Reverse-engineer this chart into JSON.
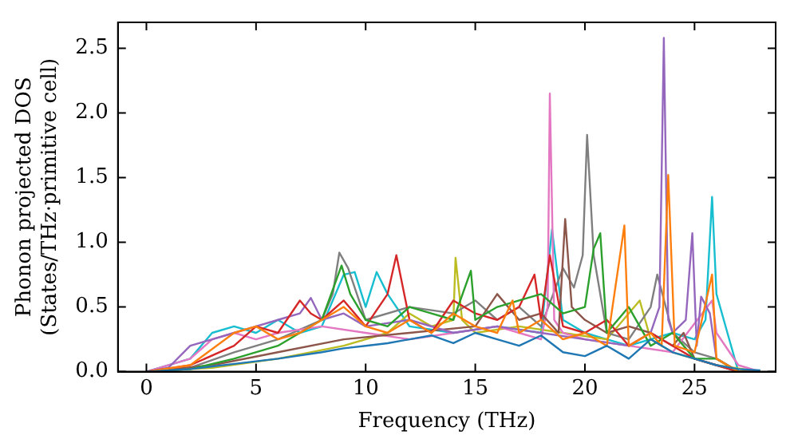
{
  "chart_data": {
    "type": "line",
    "xlabel": "Frequency (THz)",
    "ylabel": "Phonon projected DOS\n(States/THz·primitive cell)",
    "xlim": [
      -1.3,
      28.7
    ],
    "ylim": [
      0,
      2.7
    ],
    "xticks": [
      0,
      5,
      10,
      15,
      20,
      25
    ],
    "yticks": [
      {
        "value": 0,
        "label": "0.0"
      },
      0.5,
      {
        "value": 1,
        "label": "1.0"
      },
      1.5,
      {
        "value": 2,
        "label": "2.0"
      },
      2.5
    ],
    "grid": false,
    "legend": false,
    "marker": "none",
    "line_style": "solid",
    "series": [
      {
        "color": "#1f77b4",
        "x": [
          0,
          2,
          4,
          6,
          8,
          9,
          10,
          11,
          12,
          13,
          14,
          15,
          16,
          17,
          18,
          19,
          20,
          21,
          22,
          23,
          24,
          25,
          26,
          27,
          28
        ],
        "values": [
          0,
          0.02,
          0.06,
          0.1,
          0.15,
          0.18,
          0.2,
          0.22,
          0.25,
          0.28,
          0.22,
          0.3,
          0.25,
          0.2,
          0.28,
          0.15,
          0.12,
          0.2,
          0.1,
          0.25,
          0.15,
          0.1,
          0.05,
          0.02,
          0.01
        ]
      },
      {
        "color": "#ff7f0e",
        "x": [
          0,
          2,
          4,
          5,
          6,
          7,
          8,
          9,
          10,
          11,
          12,
          13,
          14,
          15,
          16,
          16.7,
          17,
          18,
          19,
          20,
          21,
          21.8,
          22,
          23,
          23.5,
          23.8,
          24.1,
          25,
          25.8,
          26,
          27,
          28
        ],
        "values": [
          0,
          0.05,
          0.3,
          0.35,
          0.25,
          0.3,
          0.4,
          0.5,
          0.35,
          0.3,
          0.4,
          0.3,
          0.45,
          0.35,
          0.3,
          0.55,
          0.3,
          0.4,
          0.25,
          0.3,
          0.2,
          1.13,
          0.2,
          0.3,
          0.2,
          1.52,
          0.2,
          0.15,
          0.75,
          0.1,
          0,
          0
        ]
      },
      {
        "color": "#2ca02c",
        "x": [
          0,
          2,
          4,
          6,
          7,
          8,
          8.9,
          9.3,
          10,
          11,
          12,
          13,
          14,
          14.8,
          15,
          16,
          17,
          18,
          19,
          20,
          20.4,
          20.7,
          21,
          22,
          23,
          24,
          25,
          26,
          27,
          28
        ],
        "values": [
          0,
          0.02,
          0.1,
          0.2,
          0.3,
          0.4,
          0.82,
          0.6,
          0.4,
          0.35,
          0.5,
          0.45,
          0.4,
          0.78,
          0.4,
          0.5,
          0.55,
          0.6,
          0.45,
          0.5,
          0.95,
          1.07,
          0.3,
          0.5,
          0.2,
          0.3,
          0.1,
          0.1,
          0,
          0
        ]
      },
      {
        "color": "#d62728",
        "x": [
          0,
          2,
          4,
          5,
          6,
          7,
          7.5,
          8,
          9,
          10,
          11,
          11.4,
          12,
          13,
          14,
          15,
          16,
          17,
          17.7,
          18,
          18.4,
          19,
          20,
          21,
          22,
          23,
          24,
          25,
          26,
          27,
          28
        ],
        "values": [
          0,
          0.05,
          0.2,
          0.35,
          0.3,
          0.55,
          0.45,
          0.4,
          0.55,
          0.35,
          0.6,
          0.9,
          0.4,
          0.3,
          0.55,
          0.45,
          0.4,
          0.5,
          0.75,
          0.4,
          0.9,
          0.35,
          0.3,
          0.4,
          0.2,
          0.3,
          0.2,
          0.1,
          0.05,
          0,
          0
        ]
      },
      {
        "color": "#9467bd",
        "x": [
          0,
          1,
          2,
          3,
          4,
          5,
          6,
          7,
          7.5,
          8,
          9,
          10,
          12,
          14,
          16,
          18,
          20,
          22,
          23,
          23.4,
          23.6,
          23.8,
          24,
          24.6,
          24.9,
          25.1,
          25.3,
          25.7,
          26,
          27,
          28
        ],
        "values": [
          0,
          0.03,
          0.2,
          0.25,
          0.3,
          0.35,
          0.4,
          0.45,
          0.57,
          0.4,
          0.45,
          0.35,
          0.4,
          0.3,
          0.35,
          0.3,
          0.25,
          0.2,
          0.3,
          0.5,
          2.58,
          0.4,
          0.3,
          0.4,
          1.07,
          0.2,
          0.58,
          0.45,
          0.1,
          0,
          0
        ]
      },
      {
        "color": "#8c564b",
        "x": [
          0,
          3,
          6,
          9,
          12,
          15,
          16,
          17,
          18,
          18.8,
          19.1,
          19.4,
          20,
          21,
          22,
          23,
          24,
          24.5,
          25,
          26,
          27,
          28
        ],
        "values": [
          0,
          0.05,
          0.15,
          0.25,
          0.3,
          0.35,
          0.6,
          0.4,
          0.45,
          0.3,
          1.18,
          0.5,
          0.4,
          0.3,
          0.35,
          0.3,
          0.2,
          0.3,
          0.1,
          0.05,
          0,
          0
        ]
      },
      {
        "color": "#e377c2",
        "x": [
          0,
          2,
          3,
          4,
          5,
          6,
          8,
          10,
          12,
          14,
          16,
          17,
          18,
          18.3,
          18.4,
          18.6,
          19,
          20,
          22,
          24,
          25.8,
          26,
          27,
          28
        ],
        "values": [
          0,
          0.1,
          0.25,
          0.3,
          0.25,
          0.3,
          0.35,
          0.3,
          0.25,
          0.3,
          0.35,
          0.3,
          0.25,
          0.5,
          2.15,
          0.4,
          0.3,
          0.25,
          0.2,
          0.15,
          0.55,
          0.3,
          0.05,
          0
        ]
      },
      {
        "color": "#7f7f7f",
        "x": [
          0,
          2,
          4,
          6,
          8,
          8.5,
          8.8,
          9.2,
          10,
          12,
          14,
          15,
          16,
          17,
          18,
          19,
          19.5,
          19.9,
          20.1,
          20.4,
          21,
          22,
          23,
          23.3,
          24,
          25,
          26,
          27,
          28
        ],
        "values": [
          0,
          0.03,
          0.15,
          0.25,
          0.4,
          0.6,
          0.92,
          0.8,
          0.4,
          0.5,
          0.45,
          0.55,
          0.4,
          0.5,
          0.35,
          0.8,
          0.65,
          0.9,
          1.83,
          0.9,
          0.3,
          0.25,
          0.5,
          0.75,
          0.3,
          0.15,
          0.1,
          0,
          0
        ]
      },
      {
        "color": "#bcbd22",
        "x": [
          0,
          3,
          6,
          9,
          11,
          12,
          13,
          14,
          14.1,
          14.4,
          15,
          17,
          19,
          21,
          22.5,
          23,
          24,
          26,
          28
        ],
        "values": [
          0,
          0.03,
          0.1,
          0.2,
          0.3,
          0.45,
          0.35,
          0.4,
          0.88,
          0.4,
          0.3,
          0.35,
          0.3,
          0.25,
          0.55,
          0.25,
          0.15,
          0.05,
          0
        ]
      },
      {
        "color": "#17becf",
        "x": [
          0,
          2,
          3,
          4,
          5,
          6,
          7,
          8,
          9,
          9.5,
          10,
          10.5,
          11,
          12,
          14,
          16,
          18,
          18.5,
          19,
          20,
          22,
          24,
          25,
          25.5,
          25.8,
          26,
          26.5,
          27,
          28
        ],
        "values": [
          0,
          0.1,
          0.3,
          0.35,
          0.3,
          0.4,
          0.3,
          0.35,
          0.75,
          0.77,
          0.5,
          0.77,
          0.6,
          0.35,
          0.3,
          0.35,
          0.3,
          1.1,
          0.4,
          0.3,
          0.2,
          0.3,
          0.25,
          0.4,
          1.35,
          0.6,
          0.3,
          0,
          0
        ]
      }
    ]
  }
}
